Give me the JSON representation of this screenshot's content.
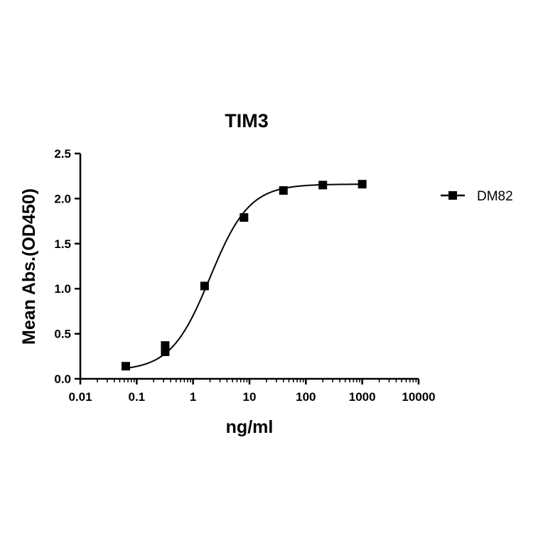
{
  "chart_data": {
    "type": "scatter",
    "title": "TIM3",
    "xlabel": "ng/ml",
    "ylabel": "Mean Abs.(OD450)",
    "x_scale": "log",
    "xlim": [
      0.01,
      10000
    ],
    "ylim": [
      0,
      2.5
    ],
    "x_ticks": [
      {
        "value": 0.01,
        "label": "0.01"
      },
      {
        "value": 0.1,
        "label": "0.1"
      },
      {
        "value": 1,
        "label": "1"
      },
      {
        "value": 10,
        "label": "10"
      },
      {
        "value": 100,
        "label": "100"
      },
      {
        "value": 1000,
        "label": "1000"
      },
      {
        "value": 10000,
        "label": "10000"
      }
    ],
    "y_ticks": [
      {
        "value": 0.0,
        "label": "0.0"
      },
      {
        "value": 0.5,
        "label": "0.5"
      },
      {
        "value": 1.0,
        "label": "1.0"
      },
      {
        "value": 1.5,
        "label": "1.5"
      },
      {
        "value": 2.0,
        "label": "2.0"
      },
      {
        "value": 2.5,
        "label": "2.5"
      }
    ],
    "legend_position": "right",
    "grid": false,
    "series": [
      {
        "name": "DM82",
        "marker": "square",
        "color": "#000000",
        "points": [
          {
            "x": 0.064,
            "y": 0.14
          },
          {
            "x": 0.32,
            "y": 0.3
          },
          {
            "x": 0.32,
            "y": 0.37
          },
          {
            "x": 1.6,
            "y": 1.03
          },
          {
            "x": 8,
            "y": 1.79
          },
          {
            "x": 40,
            "y": 2.09
          },
          {
            "x": 200,
            "y": 2.15
          },
          {
            "x": 1000,
            "y": 2.16
          }
        ],
        "fit": {
          "type": "4PL",
          "bottom": 0.09,
          "top": 2.16,
          "ec50": 2.0,
          "hill": 1.25,
          "x_range": [
            0.064,
            1000
          ]
        }
      }
    ]
  }
}
